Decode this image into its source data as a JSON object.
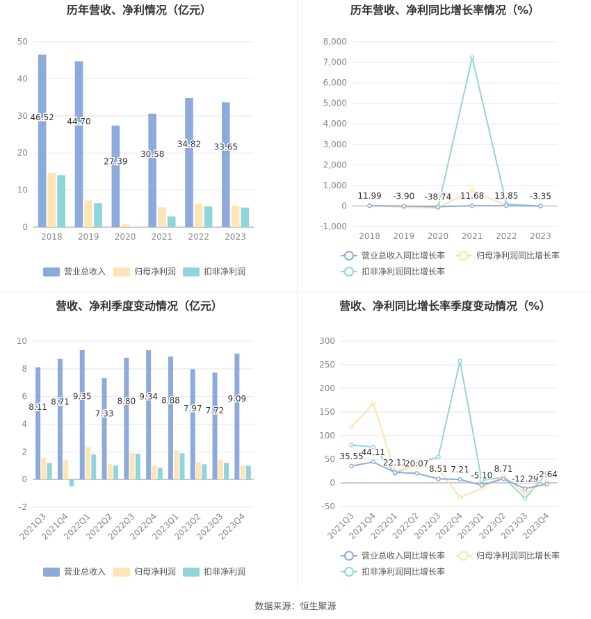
{
  "colors": {
    "revenue": "#8eaadb",
    "net_profit": "#ffe4b5",
    "deducted_profit": "#8fd5db",
    "axis_text": "#888888",
    "grid": "#e6e6e6",
    "title": "#333333"
  },
  "source": "数据来源：恒生聚源",
  "chart_data": [
    {
      "type": "bar",
      "title": "历年营收、净利情况（亿元）",
      "categories": [
        "2018",
        "2019",
        "2020",
        "2021",
        "2022",
        "2023"
      ],
      "ylim": [
        0,
        50
      ],
      "yticks": [
        0,
        10,
        20,
        30,
        40,
        50
      ],
      "grid": true,
      "legend": "bottom",
      "series": [
        {
          "name": "营业总收入",
          "values": [
            46.52,
            44.7,
            27.39,
            30.58,
            34.82,
            33.65
          ],
          "labels": [
            "46.52",
            "44.70",
            "27.39",
            "30.58",
            "34.82",
            "33.65"
          ]
        },
        {
          "name": "归母净利润",
          "values": [
            14.6,
            7.2,
            0.8,
            5.4,
            6.4,
            5.8
          ]
        },
        {
          "name": "扣非净利润",
          "values": [
            14.0,
            6.5,
            0.1,
            2.9,
            5.6,
            5.3
          ]
        }
      ]
    },
    {
      "type": "line",
      "title": "历年营收、净利同比增长率情况（%）",
      "categories": [
        "2018",
        "2019",
        "2020",
        "2021",
        "2022",
        "2023"
      ],
      "ylim": [
        -1000,
        8000
      ],
      "yticks": [
        -1000,
        0,
        1000,
        2000,
        3000,
        4000,
        5000,
        6000,
        7000,
        8000
      ],
      "ytick_labels": [
        "-1,000",
        "0",
        "1,000",
        "2,000",
        "3,000",
        "4,000",
        "5,000",
        "6,000",
        "7,000",
        "8,000"
      ],
      "grid": true,
      "legend": "bottom",
      "series": [
        {
          "name": "营业总收入同比增长率",
          "values": [
            11.99,
            -3.9,
            -38.74,
            11.68,
            13.85,
            -3.35
          ],
          "labels": [
            "11.99",
            "-3.90",
            "-38.74",
            "11.68",
            "13.85",
            "-3.35"
          ]
        },
        {
          "name": "归母净利润同比增长率",
          "values": [
            20,
            -50,
            -85,
            760,
            20,
            -10
          ]
        },
        {
          "name": "扣非净利润同比增长率",
          "values": [
            15,
            -53,
            -98,
            7230,
            95,
            -5
          ]
        }
      ]
    },
    {
      "type": "bar",
      "title": "营收、净利季度变动情况（亿元）",
      "categories": [
        "2021Q3",
        "2021Q4",
        "2022Q1",
        "2022Q2",
        "2022Q3",
        "2022Q4",
        "2023Q1",
        "2023Q2",
        "2023Q3",
        "2023Q4"
      ],
      "ylim": [
        -2,
        10
      ],
      "yticks": [
        -2,
        0,
        2,
        4,
        6,
        8,
        10
      ],
      "grid": true,
      "legend": "bottom",
      "series": [
        {
          "name": "营业总收入",
          "values": [
            8.11,
            8.71,
            9.35,
            7.33,
            8.8,
            9.34,
            8.88,
            7.97,
            7.72,
            9.09
          ],
          "labels": [
            "8.11",
            "8.71",
            "9.35",
            "7.33",
            "8.80",
            "9.34",
            "8.88",
            "7.97",
            "7.72",
            "9.09"
          ]
        },
        {
          "name": "归母净利润",
          "values": [
            1.55,
            1.4,
            2.35,
            1.1,
            1.9,
            1.0,
            2.1,
            1.25,
            1.45,
            1.0
          ]
        },
        {
          "name": "扣非净利润",
          "values": [
            1.2,
            -0.5,
            1.8,
            1.0,
            1.85,
            0.85,
            1.9,
            1.1,
            1.2,
            1.0
          ]
        }
      ]
    },
    {
      "type": "line",
      "title": "营收、净利同比增长率季度变动情况（%）",
      "categories": [
        "2021Q3",
        "2021Q4",
        "2022Q1",
        "2022Q2",
        "2022Q3",
        "2022Q4",
        "2023Q1",
        "2023Q2",
        "2023Q3",
        "2023Q4"
      ],
      "ylim": [
        -50,
        300
      ],
      "yticks": [
        -50,
        0,
        50,
        100,
        150,
        200,
        250,
        300
      ],
      "grid": true,
      "legend": "bottom",
      "series": [
        {
          "name": "营业总收入同比增长率",
          "values": [
            35.55,
            44.11,
            22.11,
            20.07,
            8.51,
            7.21,
            -5.1,
            8.71,
            -12.29,
            -2.64
          ],
          "labels": [
            "35.55",
            "44.11",
            "22.11",
            "20.07",
            "8.51",
            "7.21",
            "-5.10",
            "8.71",
            "-12.29",
            "-2.64"
          ]
        },
        {
          "name": "归母净利润同比增长率",
          "values": [
            118,
            168,
            25,
            35,
            30,
            -31,
            -12,
            14,
            -22,
            3
          ]
        },
        {
          "name": "扣非净利润同比增长率",
          "values": [
            80,
            76,
            20,
            40,
            55,
            258,
            5,
            12,
            -33,
            20
          ]
        }
      ]
    }
  ]
}
